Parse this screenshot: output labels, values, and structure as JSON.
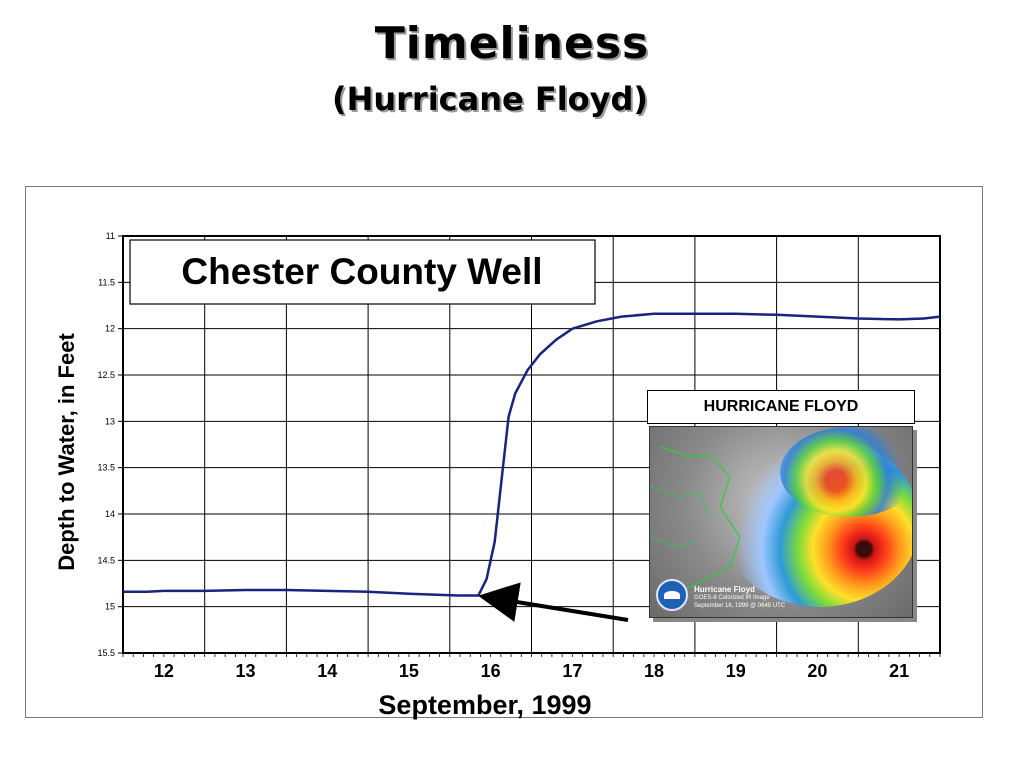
{
  "slide": {
    "title": "Timeliness",
    "subtitle": "(Hurricane Floyd)"
  },
  "inset": {
    "caption": "HURRICANE FLOYD",
    "image_title": "Hurricane Floyd",
    "image_line2": "GOES-8 Colorized IR Image",
    "image_line3": "September 16, 1999 @ 0645 UTC",
    "logo": "noaa-logo"
  },
  "chart_data": {
    "type": "line",
    "title": "Chester County Well",
    "xlabel": "September, 1999",
    "ylabel": "Depth to Water, in Feet",
    "x_ticks": [
      "12",
      "13",
      "14",
      "15",
      "16",
      "17",
      "18",
      "19",
      "20",
      "21"
    ],
    "xlim": [
      11.5,
      21.5
    ],
    "y_ticks": [
      "11",
      "11.5",
      "12",
      "12.5",
      "13",
      "13.5",
      "14",
      "14.5",
      "15",
      "15.5"
    ],
    "ylim": [
      11,
      15.5
    ],
    "y_inverted": true,
    "grid": true,
    "series": [
      {
        "color": "#1a237e",
        "x": [
          11.5,
          11.8,
          12.0,
          12.5,
          13.0,
          13.5,
          14.0,
          14.5,
          15.0,
          15.3,
          15.6,
          15.85,
          15.95,
          16.05,
          16.15,
          16.22,
          16.3,
          16.45,
          16.6,
          16.8,
          17.0,
          17.3,
          17.6,
          18.0,
          18.5,
          19.0,
          19.5,
          20.0,
          20.5,
          21.0,
          21.3,
          21.5
        ],
        "y": [
          14.84,
          14.84,
          14.83,
          14.83,
          14.82,
          14.82,
          14.83,
          14.84,
          14.86,
          14.87,
          14.88,
          14.88,
          14.7,
          14.3,
          13.5,
          12.95,
          12.7,
          12.45,
          12.28,
          12.12,
          12.0,
          11.92,
          11.87,
          11.84,
          11.84,
          11.84,
          11.85,
          11.87,
          11.89,
          11.9,
          11.89,
          11.87
        ]
      }
    ]
  }
}
